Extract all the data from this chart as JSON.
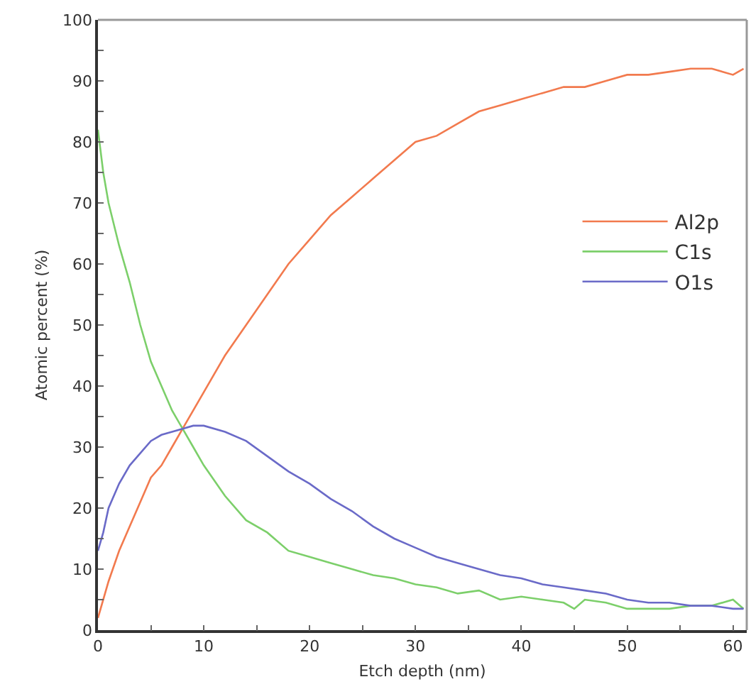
{
  "chart_data": {
    "type": "line",
    "xlabel": "Etch depth (nm)",
    "ylabel": "Atomic percent (%)",
    "xlim": [
      0,
      61.3
    ],
    "xticks": [
      0,
      {
        "value": 5,
        "label": null
      },
      10,
      {
        "value": 15,
        "label": null
      },
      20,
      {
        "value": 25,
        "label": null
      },
      30,
      {
        "value": 35,
        "label": null
      },
      40,
      {
        "value": 45,
        "label": null
      },
      50,
      {
        "value": 55,
        "label": null
      },
      60
    ],
    "ylim": [
      0,
      100
    ],
    "yticks": [
      0,
      {
        "value": 5,
        "label": null
      },
      10,
      {
        "value": 15,
        "label": null
      },
      20,
      {
        "value": 25,
        "label": null
      },
      30,
      {
        "value": 35,
        "label": null
      },
      40,
      {
        "value": 45,
        "label": null
      },
      50,
      {
        "value": 55,
        "label": null
      },
      60,
      {
        "value": 65,
        "label": null
      },
      70,
      {
        "value": 75,
        "label": null
      },
      80,
      {
        "value": 85,
        "label": null
      },
      90,
      {
        "value": 95,
        "label": null
      },
      100
    ],
    "grid": false,
    "legend": "right",
    "marker": "none",
    "line_style": "solid",
    "series": [
      {
        "name": "Al2p",
        "color": "#f27a4e",
        "x": [
          0,
          1,
          2,
          3,
          4,
          5,
          6,
          7,
          8,
          9,
          10,
          12,
          14,
          16,
          18,
          20,
          22,
          24,
          26,
          28,
          30,
          32,
          34,
          36,
          38,
          40,
          42,
          44,
          46,
          48,
          50,
          52,
          54,
          56,
          58,
          60,
          61
        ],
        "values": [
          2,
          8,
          13,
          17,
          21,
          25,
          27,
          30,
          33,
          36,
          39,
          45,
          50,
          55,
          60,
          64,
          68,
          71,
          74,
          77,
          80,
          81,
          83,
          85,
          86,
          87,
          88,
          89,
          89,
          90,
          91,
          91,
          91.5,
          92,
          92,
          91,
          92
        ]
      },
      {
        "name": "C1s",
        "color": "#7ccf6a",
        "x": [
          0,
          0.5,
          1,
          2,
          3,
          4,
          5,
          6,
          7,
          8,
          9,
          10,
          12,
          14,
          16,
          18,
          20,
          22,
          24,
          26,
          28,
          30,
          32,
          34,
          36,
          38,
          40,
          42,
          44,
          45,
          46,
          48,
          50,
          52,
          54,
          56,
          58,
          60,
          61
        ],
        "values": [
          82,
          75,
          70,
          63,
          57,
          50,
          44,
          40,
          36,
          33,
          30,
          27,
          22,
          18,
          16,
          13,
          12,
          11,
          10,
          9,
          8.5,
          7.5,
          7,
          6,
          6.5,
          5,
          5.5,
          5,
          4.5,
          3.5,
          5,
          4.5,
          3.5,
          3.5,
          3.5,
          4,
          4,
          5,
          3.5
        ]
      },
      {
        "name": "O1s",
        "color": "#6a6ac8",
        "x": [
          0,
          0.5,
          1,
          2,
          3,
          4,
          5,
          6,
          7,
          8,
          9,
          10,
          12,
          14,
          16,
          18,
          20,
          22,
          24,
          26,
          28,
          30,
          32,
          34,
          36,
          38,
          40,
          42,
          44,
          46,
          48,
          50,
          52,
          54,
          56,
          58,
          60,
          61
        ],
        "values": [
          13,
          16,
          20,
          24,
          27,
          29,
          31,
          32,
          32.5,
          33,
          33.5,
          33.5,
          32.5,
          31,
          28.5,
          26,
          24,
          21.5,
          19.5,
          17,
          15,
          13.5,
          12,
          11,
          10,
          9,
          8.5,
          7.5,
          7,
          6.5,
          6,
          5,
          4.5,
          4.5,
          4,
          4,
          3.5,
          3.5
        ]
      }
    ]
  }
}
